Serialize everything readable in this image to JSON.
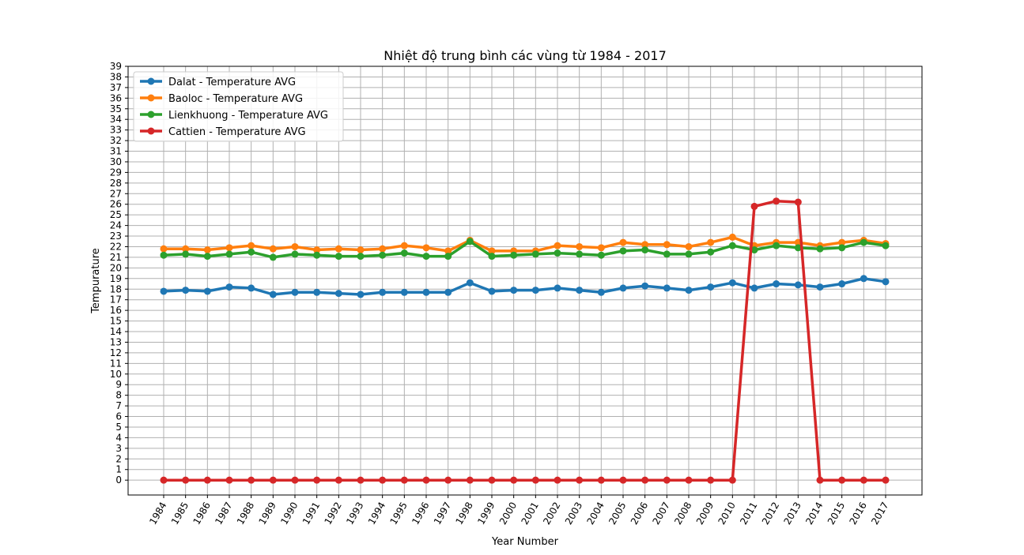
{
  "chart_data": {
    "type": "line",
    "title": "Nhiệt độ trung bình các vùng từ 1984 - 2017",
    "xlabel": "Year Number",
    "ylabel": "Tempurature",
    "x": [
      "1984",
      "1985",
      "1986",
      "1987",
      "1988",
      "1989",
      "1990",
      "1991",
      "1992",
      "1993",
      "1994",
      "1995",
      "1996",
      "1997",
      "1998",
      "1999",
      "2000",
      "2001",
      "2002",
      "2003",
      "2004",
      "2005",
      "2006",
      "2007",
      "2008",
      "2009",
      "2010",
      "2011",
      "2012",
      "2013",
      "2014",
      "2015",
      "2016",
      "2017"
    ],
    "yticks": [
      0,
      1,
      2,
      3,
      4,
      5,
      6,
      7,
      8,
      9,
      10,
      11,
      12,
      13,
      14,
      15,
      16,
      17,
      18,
      19,
      20,
      21,
      22,
      23,
      24,
      25,
      26,
      27,
      28,
      29,
      30,
      31,
      32,
      33,
      34,
      35,
      36,
      37,
      38,
      39
    ],
    "ylim": [
      -1.4,
      39
    ],
    "grid": true,
    "legend_position": "top-left",
    "series": [
      {
        "name": "Dalat - Temperature AVG",
        "color": "#1f77b4",
        "values": [
          17.8,
          17.9,
          17.8,
          18.2,
          18.1,
          17.5,
          17.7,
          17.7,
          17.6,
          17.5,
          17.7,
          17.7,
          17.7,
          17.7,
          18.6,
          17.8,
          17.9,
          17.9,
          18.1,
          17.9,
          17.7,
          18.1,
          18.3,
          18.1,
          17.9,
          18.2,
          18.6,
          18.1,
          18.5,
          18.4,
          18.2,
          18.5,
          19.0,
          18.7
        ]
      },
      {
        "name": "Baoloc - Temperature AVG",
        "color": "#ff7f0e",
        "values": [
          21.8,
          21.8,
          21.7,
          21.9,
          22.1,
          21.8,
          22.0,
          21.7,
          21.8,
          21.7,
          21.8,
          22.1,
          21.9,
          21.6,
          22.6,
          21.6,
          21.6,
          21.6,
          22.1,
          22.0,
          21.9,
          22.4,
          22.2,
          22.2,
          22.0,
          22.4,
          22.9,
          22.1,
          22.4,
          22.4,
          22.1,
          22.4,
          22.6,
          22.3
        ]
      },
      {
        "name": "Lienkhuong - Temperature AVG",
        "color": "#2ca02c",
        "values": [
          21.2,
          21.3,
          21.1,
          21.3,
          21.5,
          21.0,
          21.3,
          21.2,
          21.1,
          21.1,
          21.2,
          21.4,
          21.1,
          21.1,
          22.5,
          21.1,
          21.2,
          21.3,
          21.4,
          21.3,
          21.2,
          21.6,
          21.7,
          21.3,
          21.3,
          21.5,
          22.1,
          21.7,
          22.1,
          21.9,
          21.8,
          21.9,
          22.4,
          22.1
        ]
      },
      {
        "name": "Cattien - Temperature AVG",
        "color": "#d62728",
        "values": [
          0,
          0,
          0,
          0,
          0,
          0,
          0,
          0,
          0,
          0,
          0,
          0,
          0,
          0,
          0,
          0,
          0,
          0,
          0,
          0,
          0,
          0,
          0,
          0,
          0,
          0,
          0,
          25.8,
          26.3,
          26.2,
          0,
          0,
          0,
          0
        ]
      }
    ]
  }
}
